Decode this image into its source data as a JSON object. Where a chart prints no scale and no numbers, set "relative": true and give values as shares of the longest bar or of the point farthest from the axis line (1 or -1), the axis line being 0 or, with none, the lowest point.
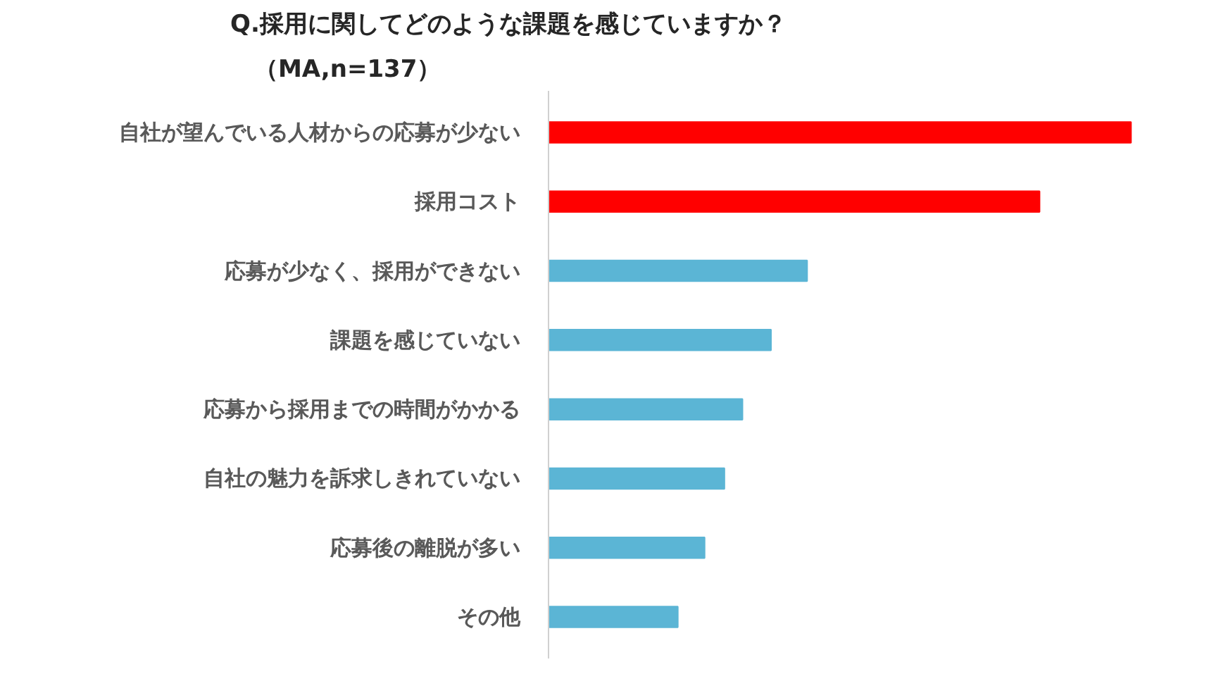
{
  "chart_data": {
    "type": "bar",
    "orientation": "horizontal",
    "relative": true,
    "title": "Q.採用に関してどのような課題を感じていますか？",
    "subtitle": "（MA,n=137）",
    "categories": [
      "自社が望んでいる人材からの応募が少ない",
      "採用コスト",
      "応募が少なく、採用ができない",
      "課題を感じていない",
      "応募から採用までの時間がかかる",
      "自社の魅力を訴求しきれていない",
      "応募後の離脱が多い",
      "その他"
    ],
    "values": [
      1,
      0.843,
      0.444,
      0.382,
      0.333,
      0.302,
      0.268,
      0.222
    ],
    "colors": [
      "#ff0000",
      "#ff0000",
      "#5bb5d5",
      "#5bb5d5",
      "#5bb5d5",
      "#5bb5d5",
      "#5bb5d5",
      "#5bb5d5"
    ],
    "grid": false
  }
}
